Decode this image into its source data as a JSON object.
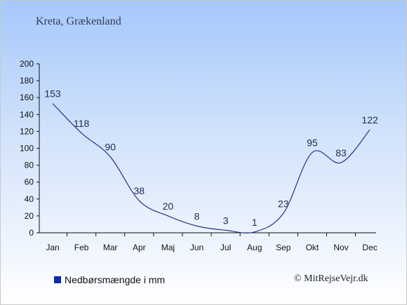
{
  "subtitle": "Kreta, Grækenland",
  "legend": {
    "label": "Nedbørsmængde i mm",
    "color": "#0b2aa6"
  },
  "copyright": "© MitRejseVejr.dk",
  "colors": {
    "line": "#26338c",
    "axis": "#111111",
    "label": "#1f2a55"
  },
  "chart_data": {
    "type": "line",
    "categories": [
      "Jan",
      "Feb",
      "Mar",
      "Apr",
      "Maj",
      "Jun",
      "Jul",
      "Aug",
      "Sep",
      "Okt",
      "Nov",
      "Dec"
    ],
    "series": [
      {
        "values": [
          153,
          118,
          90,
          38,
          20,
          8,
          3,
          1,
          23,
          95,
          83,
          122
        ]
      }
    ],
    "data_labels": [
      "153",
      "118",
      "90",
      "38",
      "20",
      "8",
      "3",
      "1",
      "23",
      "95",
      "83",
      "122"
    ],
    "ylim": [
      0,
      200
    ],
    "yticks": [
      0,
      20,
      40,
      60,
      80,
      100,
      120,
      140,
      160,
      180,
      200
    ],
    "grid": false,
    "legend_position": "bottom-left"
  }
}
